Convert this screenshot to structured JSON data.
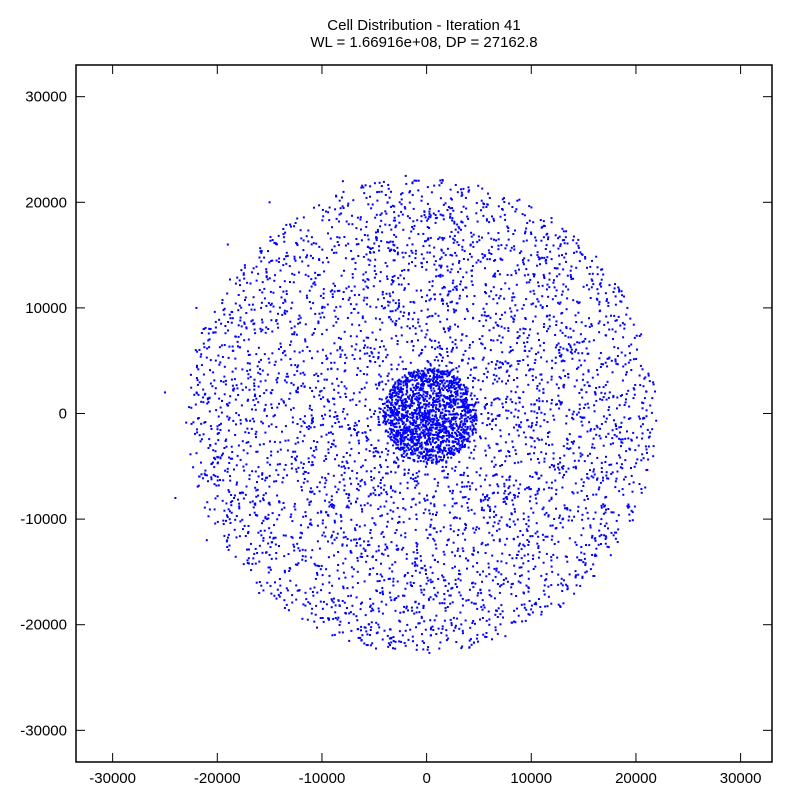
{
  "chart_data": {
    "type": "scatter",
    "title": "Cell Distribution - Iteration 41",
    "subtitle": "WL = 1.66916e+08, DP = 27162.8",
    "xlabel": "",
    "ylabel": "",
    "xlim": [
      -33500,
      33000
    ],
    "ylim": [
      -33000,
      33000
    ],
    "x_ticks": [
      -30000,
      -20000,
      -10000,
      0,
      10000,
      20000,
      30000
    ],
    "x_tick_labels": [
      "-30000",
      "-20000",
      "-10000",
      "0",
      "10000",
      "20000",
      "30000"
    ],
    "y_ticks": [
      -30000,
      -20000,
      -10000,
      0,
      10000,
      20000,
      30000
    ],
    "y_tick_labels": [
      "-30000",
      "-20000",
      "-10000",
      "0",
      "10000",
      "20000",
      "30000"
    ],
    "grid": false,
    "legend": "none",
    "marker_color": "#0000ff",
    "series": [
      {
        "points": {
          "distribution": "radial cell cloud",
          "center": [
            -500,
            -200
          ],
          "outer_radius": 22500,
          "dense_core_radius": 4500,
          "count": 6000,
          "sample": [
            [
              -25000,
              2000
            ],
            [
              -24000,
              -8000
            ],
            [
              -22000,
              10000
            ],
            [
              -19000,
              16000
            ],
            [
              -15000,
              20000
            ],
            [
              -8000,
              22000
            ],
            [
              -2000,
              22500
            ],
            [
              4000,
              21000
            ],
            [
              10000,
              17000
            ],
            [
              15000,
              12000
            ],
            [
              17500,
              2000
            ],
            [
              16500,
              -7000
            ],
            [
              12000,
              -15000
            ],
            [
              6000,
              -19500
            ],
            [
              -2000,
              -22000
            ],
            [
              -9000,
              -21000
            ],
            [
              -16000,
              -17000
            ],
            [
              -21000,
              -12000
            ],
            [
              0,
              0
            ],
            [
              1500,
              -500
            ],
            [
              -3000,
              1000
            ],
            [
              2500,
              3000
            ],
            [
              -1000,
              -3500
            ],
            [
              4000,
              -2000
            ]
          ]
        }
      }
    ]
  }
}
